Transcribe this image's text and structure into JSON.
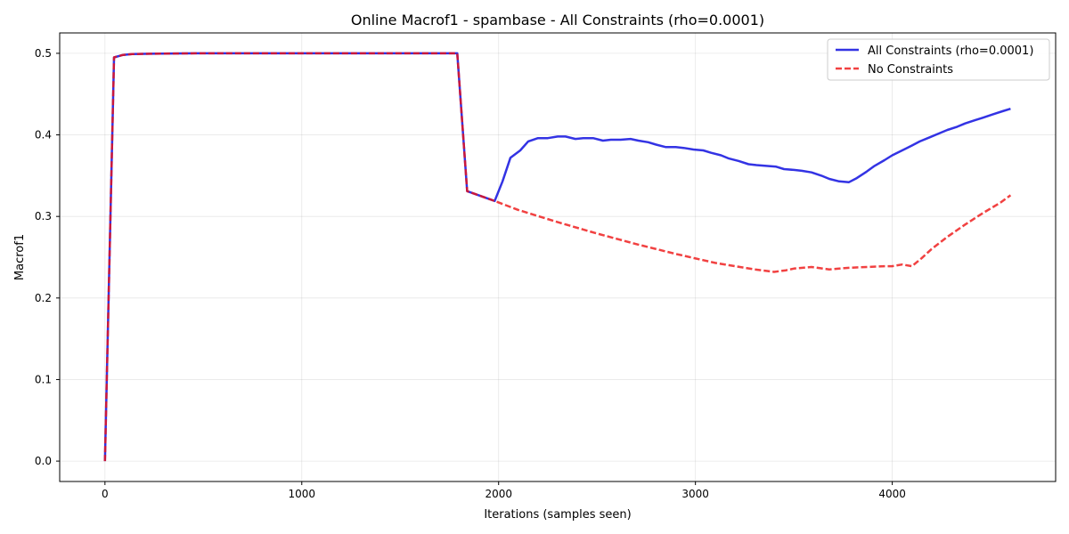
{
  "chart_data": {
    "type": "line",
    "title": "Online Macrof1 - spambase - All Constraints (rho=0.0001)",
    "xlabel": "Iterations (samples seen)",
    "ylabel": "Macrof1",
    "xlim": [
      -230,
      4830
    ],
    "ylim": [
      -0.025,
      0.525
    ],
    "x_ticks": [
      0,
      1000,
      2000,
      3000,
      4000
    ],
    "y_ticks": [
      0.0,
      0.1,
      0.2,
      0.3,
      0.4,
      0.5
    ],
    "x_tick_labels": [
      "0",
      "1000",
      "2000",
      "3000",
      "4000"
    ],
    "y_tick_labels": [
      "0.0",
      "0.1",
      "0.2",
      "0.3",
      "0.4",
      "0.5"
    ],
    "grid": true,
    "legend_position": "top-right",
    "series": [
      {
        "name": "All Constraints (rho=0.0001)",
        "color": "#0000dd",
        "style": "solid",
        "points": [
          [
            0,
            0.0
          ],
          [
            46,
            0.495
          ],
          [
            92,
            0.498
          ],
          [
            138,
            0.499
          ],
          [
            230,
            0.4995
          ],
          [
            460,
            0.5
          ],
          [
            1000,
            0.5
          ],
          [
            1500,
            0.5
          ],
          [
            1790,
            0.5
          ],
          [
            1840,
            0.331
          ],
          [
            1980,
            0.319
          ],
          [
            2020,
            0.343
          ],
          [
            2060,
            0.372
          ],
          [
            2110,
            0.381
          ],
          [
            2150,
            0.392
          ],
          [
            2200,
            0.396
          ],
          [
            2250,
            0.396
          ],
          [
            2300,
            0.398
          ],
          [
            2340,
            0.398
          ],
          [
            2390,
            0.395
          ],
          [
            2430,
            0.396
          ],
          [
            2480,
            0.396
          ],
          [
            2530,
            0.393
          ],
          [
            2570,
            0.394
          ],
          [
            2620,
            0.394
          ],
          [
            2670,
            0.395
          ],
          [
            2710,
            0.393
          ],
          [
            2760,
            0.391
          ],
          [
            2800,
            0.388
          ],
          [
            2850,
            0.385
          ],
          [
            2900,
            0.385
          ],
          [
            2940,
            0.384
          ],
          [
            2990,
            0.382
          ],
          [
            3040,
            0.381
          ],
          [
            3080,
            0.378
          ],
          [
            3130,
            0.375
          ],
          [
            3170,
            0.371
          ],
          [
            3220,
            0.368
          ],
          [
            3270,
            0.364
          ],
          [
            3310,
            0.363
          ],
          [
            3360,
            0.362
          ],
          [
            3410,
            0.361
          ],
          [
            3450,
            0.358
          ],
          [
            3500,
            0.357
          ],
          [
            3540,
            0.356
          ],
          [
            3590,
            0.354
          ],
          [
            3640,
            0.35
          ],
          [
            3680,
            0.346
          ],
          [
            3730,
            0.343
          ],
          [
            3780,
            0.342
          ],
          [
            3820,
            0.347
          ],
          [
            3870,
            0.355
          ],
          [
            3910,
            0.362
          ],
          [
            3960,
            0.369
          ],
          [
            4000,
            0.375
          ],
          [
            4050,
            0.381
          ],
          [
            4100,
            0.387
          ],
          [
            4140,
            0.392
          ],
          [
            4190,
            0.397
          ],
          [
            4230,
            0.401
          ],
          [
            4280,
            0.406
          ],
          [
            4330,
            0.41
          ],
          [
            4370,
            0.414
          ],
          [
            4420,
            0.418
          ],
          [
            4460,
            0.421
          ],
          [
            4510,
            0.425
          ],
          [
            4560,
            0.429
          ],
          [
            4601,
            0.432
          ]
        ]
      },
      {
        "name": "No Constraints",
        "color": "#ee1111",
        "style": "dashed",
        "points": [
          [
            0,
            0.0
          ],
          [
            46,
            0.495
          ],
          [
            92,
            0.498
          ],
          [
            138,
            0.499
          ],
          [
            230,
            0.4995
          ],
          [
            460,
            0.5
          ],
          [
            1000,
            0.5
          ],
          [
            1500,
            0.5
          ],
          [
            1790,
            0.5
          ],
          [
            1840,
            0.331
          ],
          [
            1980,
            0.319
          ],
          [
            2100,
            0.308
          ],
          [
            2300,
            0.293
          ],
          [
            2500,
            0.279
          ],
          [
            2700,
            0.266
          ],
          [
            2900,
            0.254
          ],
          [
            3100,
            0.243
          ],
          [
            3300,
            0.235
          ],
          [
            3400,
            0.232
          ],
          [
            3460,
            0.234
          ],
          [
            3500,
            0.236
          ],
          [
            3590,
            0.238
          ],
          [
            3680,
            0.235
          ],
          [
            3780,
            0.237
          ],
          [
            3870,
            0.238
          ],
          [
            3960,
            0.239
          ],
          [
            4000,
            0.239
          ],
          [
            4050,
            0.241
          ],
          [
            4100,
            0.239
          ],
          [
            4150,
            0.249
          ],
          [
            4200,
            0.26
          ],
          [
            4280,
            0.275
          ],
          [
            4370,
            0.29
          ],
          [
            4460,
            0.304
          ],
          [
            4550,
            0.317
          ],
          [
            4601,
            0.326
          ]
        ]
      }
    ]
  }
}
